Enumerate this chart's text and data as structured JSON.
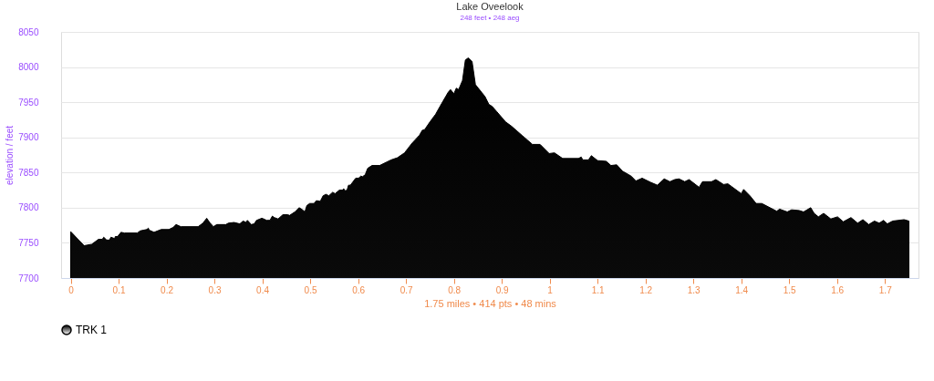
{
  "chart_data": {
    "type": "area",
    "title": "Lake Oveelook",
    "subtitle": "248 feet • 248 aeg",
    "xlabel": "1.75 miles • 414 pts • 48 mins",
    "ylabel": "elevation / feet",
    "x": [
      0,
      0.028,
      0.044,
      0.058,
      0.066,
      0.069,
      0.075,
      0.081,
      0.084,
      0.092,
      0.093,
      0.098,
      0.105,
      0.112,
      0.139,
      0.145,
      0.159,
      0.162,
      0.164,
      0.174,
      0.189,
      0.205,
      0.214,
      0.22,
      0.23,
      0.266,
      0.276,
      0.284,
      0.29,
      0.298,
      0.305,
      0.324,
      0.329,
      0.341,
      0.353,
      0.36,
      0.366,
      0.369,
      0.377,
      0.383,
      0.388,
      0.399,
      0.403,
      0.409,
      0.416,
      0.421,
      0.425,
      0.433,
      0.443,
      0.453,
      0.457,
      0.468,
      0.477,
      0.484,
      0.489,
      0.493,
      0.499,
      0.508,
      0.513,
      0.521,
      0.527,
      0.533,
      0.539,
      0.547,
      0.552,
      0.561,
      0.567,
      0.57,
      0.573,
      0.577,
      0.58,
      0.584,
      0.595,
      0.601,
      0.606,
      0.609,
      0.615,
      0.62,
      0.629,
      0.645,
      0.66,
      0.669,
      0.682,
      0.697,
      0.713,
      0.728,
      0.734,
      0.739,
      0.75,
      0.762,
      0.771,
      0.788,
      0.793,
      0.8,
      0.805,
      0.81,
      0.818,
      0.824,
      0.83,
      0.838,
      0.845,
      0.858,
      0.865,
      0.873,
      0.88,
      0.889,
      0.908,
      0.92,
      0.942,
      0.964,
      0.98,
      0.999,
      1.01,
      1.027,
      1.06,
      1.066,
      1.069,
      1.081,
      1.087,
      1.1,
      1.118,
      1.128,
      1.14,
      1.152,
      1.17,
      1.18,
      1.193,
      1.211,
      1.225,
      1.239,
      1.251,
      1.261,
      1.27,
      1.282,
      1.291,
      1.312,
      1.319,
      1.338,
      1.347,
      1.363,
      1.372,
      1.4,
      1.405,
      1.418,
      1.431,
      1.443,
      1.474,
      1.48,
      1.496,
      1.505,
      1.521,
      1.53,
      1.545,
      1.552,
      1.561,
      1.572,
      1.587,
      1.601,
      1.613,
      1.629,
      1.643,
      1.654,
      1.666,
      1.678,
      1.688,
      1.697,
      1.705,
      1.716,
      1.728,
      1.74,
      1.75
    ],
    "series": [
      {
        "name": "TRK 1",
        "color": "#000000",
        "values": [
          7766,
          7746,
          7748,
          7755,
          7755,
          7758,
          7754,
          7754,
          7758,
          7756,
          7759,
          7759,
          7765,
          7764,
          7764,
          7767,
          7769,
          7771,
          7768,
          7765,
          7769,
          7769,
          7772,
          7776,
          7773,
          7773,
          7778,
          7785,
          7779,
          7773,
          7776,
          7776,
          7778,
          7779,
          7777,
          7781,
          7779,
          7782,
          7776,
          7777,
          7782,
          7785,
          7784,
          7782,
          7782,
          7788,
          7786,
          7784,
          7790,
          7790,
          7789,
          7794,
          7800,
          7797,
          7794,
          7803,
          7806,
          7806,
          7810,
          7809,
          7817,
          7819,
          7817,
          7822,
          7820,
          7825,
          7825,
          7827,
          7824,
          7825,
          7832,
          7832,
          7842,
          7842,
          7845,
          7844,
          7847,
          7856,
          7860,
          7860,
          7865,
          7868,
          7871,
          7878,
          7892,
          7903,
          7910,
          7911,
          7922,
          7933,
          7944,
          7964,
          7968,
          7962,
          7970,
          7968,
          7981,
          8010,
          8013,
          8008,
          7975,
          7964,
          7958,
          7947,
          7944,
          7937,
          7922,
          7916,
          7903,
          7890,
          7890,
          7877,
          7878,
          7870,
          7870,
          7872,
          7868,
          7868,
          7874,
          7867,
          7866,
          7860,
          7861,
          7852,
          7845,
          7838,
          7842,
          7836,
          7832,
          7841,
          7837,
          7840,
          7841,
          7837,
          7840,
          7829,
          7837,
          7837,
          7840,
          7833,
          7834,
          7820,
          7826,
          7817,
          7806,
          7806,
          7795,
          7798,
          7794,
          7797,
          7796,
          7794,
          7800,
          7792,
          7787,
          7792,
          7784,
          7787,
          7780,
          7786,
          7778,
          7783,
          7776,
          7781,
          7778,
          7782,
          7777,
          7781,
          7782,
          7783,
          7781
        ]
      }
    ],
    "xlim": [
      -0.02,
      1.77
    ],
    "ylim": [
      7700,
      8050
    ],
    "xticks": [
      0,
      0.1,
      0.2,
      0.3,
      0.4,
      0.5,
      0.6,
      0.7,
      0.8,
      0.9,
      1,
      1.1,
      1.2,
      1.3,
      1.4,
      1.5,
      1.6,
      1.7
    ],
    "yticks": [
      7700,
      7750,
      7800,
      7850,
      7900,
      7950,
      8000,
      8050
    ],
    "grid": "y",
    "legend": "bottom"
  }
}
